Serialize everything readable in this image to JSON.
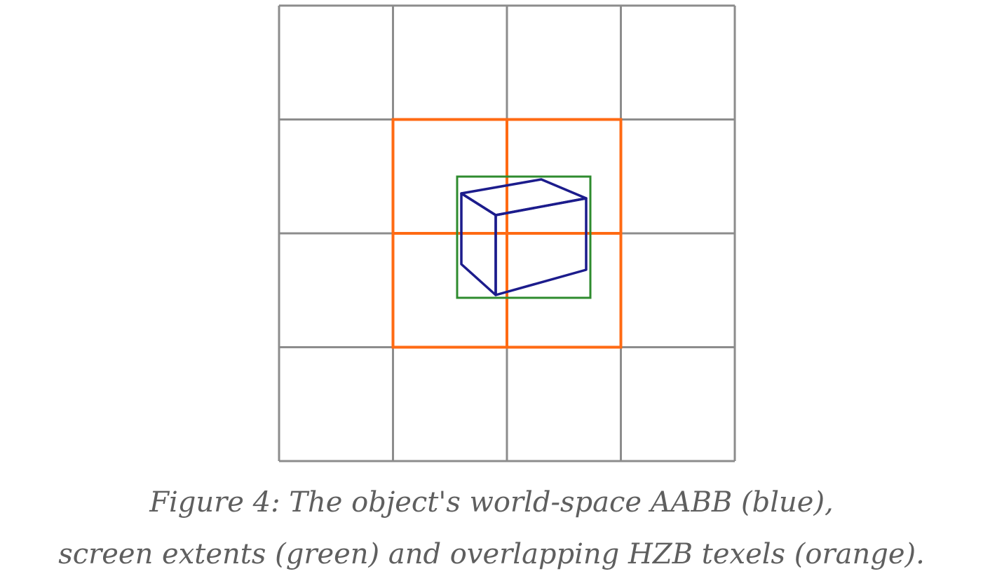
{
  "figure": {
    "grid": {
      "cols": 4,
      "rows": 4,
      "color": "#8c8c8c"
    },
    "hzb_texels": {
      "color": "#ff6a13",
      "col_start": 1,
      "row_start": 1,
      "cols": 2,
      "rows": 2
    },
    "screen_extents": {
      "color": "#2e8b2e"
    },
    "aabb": {
      "color": "#1c1c8c"
    }
  },
  "caption": {
    "line1": "Figure 4: The object's world-space AABB (blue),",
    "line2": "screen extents (green) and overlapping HZB texels (orange)."
  }
}
